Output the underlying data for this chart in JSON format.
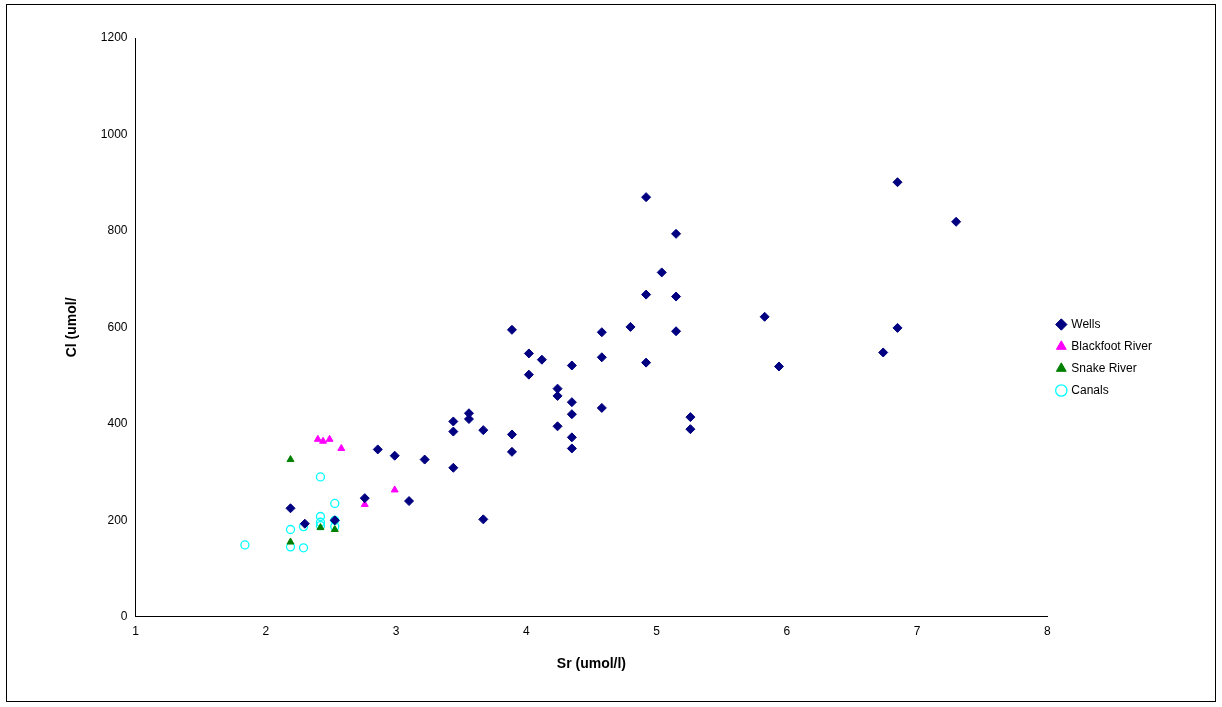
{
  "chart_data": {
    "type": "scatter",
    "xlabel": "Sr (umol/l)",
    "ylabel": "Cl (umol/",
    "xlim": [
      1,
      8
    ],
    "xticks": [
      1,
      2,
      3,
      4,
      5,
      6,
      7,
      8
    ],
    "ylim": [
      0,
      1200
    ],
    "yticks": [
      0,
      200,
      400,
      600,
      800,
      1000,
      1200
    ],
    "grid": false,
    "legend": "right",
    "series": [
      {
        "name": "Wells",
        "color": "#000080",
        "marker": "diamond",
        "x": [
          2.19,
          2.3,
          2.53,
          2.76,
          2.86,
          2.99,
          3.1,
          3.22,
          3.44,
          3.44,
          3.44,
          3.56,
          3.56,
          3.67,
          3.67,
          3.89,
          3.89,
          3.89,
          4.02,
          4.02,
          4.12,
          4.24,
          4.24,
          4.24,
          4.35,
          4.35,
          4.35,
          4.35,
          4.35,
          4.58,
          4.58,
          4.58,
          4.8,
          4.92,
          4.92,
          4.92,
          5.04,
          5.15,
          5.15,
          5.15,
          5.26,
          5.26,
          5.83,
          5.94,
          6.74,
          6.85,
          6.85,
          7.3
        ],
        "values": [
          225,
          193,
          200,
          246,
          347,
          334,
          240,
          326,
          405,
          384,
          309,
          422,
          410,
          387,
          202,
          595,
          378,
          342,
          546,
          502,
          533,
          473,
          458,
          395,
          521,
          445,
          420,
          372,
          349,
          590,
          538,
          433,
          601,
          870,
          668,
          527,
          714,
          794,
          664,
          592,
          414,
          389,
          622,
          519,
          548,
          599,
          901,
          819
        ]
      },
      {
        "name": "Blackfoot River",
        "color": "#ff00ff",
        "marker": "triangle",
        "x": [
          2.4,
          2.44,
          2.49,
          2.58,
          2.76,
          2.99
        ],
        "values": [
          368,
          364,
          368,
          349,
          233,
          263
        ]
      },
      {
        "name": "Snake River",
        "color": "#008000",
        "marker": "triangle",
        "x": [
          2.19,
          2.19,
          2.42,
          2.53
        ],
        "values": [
          326,
          155,
          185,
          181
        ]
      },
      {
        "name": "Canals",
        "color": "#00ffff",
        "marker": "circle",
        "x": [
          1.84,
          2.19,
          2.19,
          2.29,
          2.29,
          2.42,
          2.42,
          2.42,
          2.42,
          2.53,
          2.53,
          2.53
        ],
        "values": [
          149,
          181,
          145,
          143,
          187,
          290,
          208,
          196,
          189,
          235,
          200,
          187
        ]
      }
    ]
  }
}
